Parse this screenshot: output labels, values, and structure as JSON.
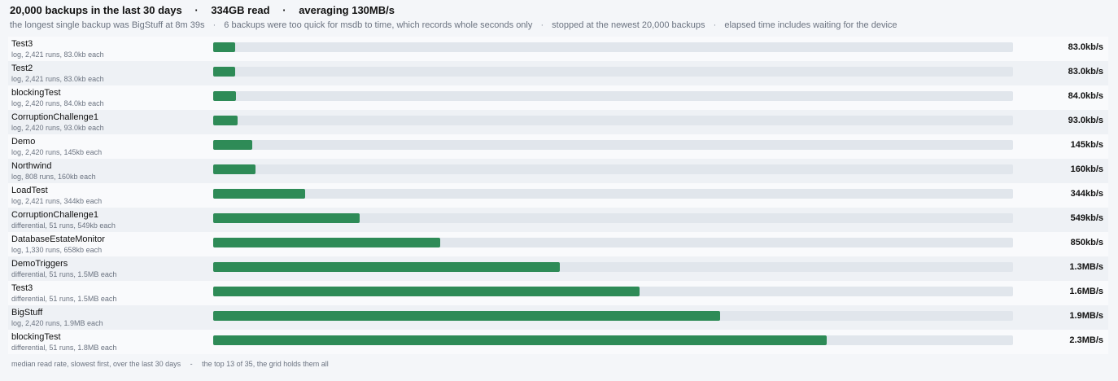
{
  "header": {
    "backups": "20,000 backups in the last 30 days",
    "read": "334GB read",
    "average": "averaging 130MB/s",
    "sep": "·"
  },
  "subline": {
    "items": [
      "the longest single backup was BigStuff at 8m 39s",
      "6 backups were too quick for msdb to time, which records whole seconds only",
      "stopped at the newest 20,000 backups",
      "elapsed time includes waiting for the device"
    ],
    "sep": "·"
  },
  "footer": {
    "left": "median read rate, slowest first, over the last 30 days",
    "dash": "-",
    "right": "the top 13 of 35, the grid holds them all"
  },
  "colors": {
    "bar": "#2e8b57",
    "track": "#e1e6ec"
  },
  "chart_data": {
    "type": "bar",
    "orientation": "horizontal",
    "unit": "kb/s",
    "max_value": 3000,
    "rows": [
      {
        "name": "Test3",
        "meta": "log, 2,421 runs, 83.0kb each",
        "value": 83,
        "label": "83.0kb/s"
      },
      {
        "name": "Test2",
        "meta": "log, 2,421 runs, 83.0kb each",
        "value": 83,
        "label": "83.0kb/s"
      },
      {
        "name": "blockingTest",
        "meta": "log, 2,420 runs, 84.0kb each",
        "value": 84,
        "label": "84.0kb/s"
      },
      {
        "name": "CorruptionChallenge1",
        "meta": "log, 2,420 runs, 93.0kb each",
        "value": 93,
        "label": "93.0kb/s"
      },
      {
        "name": "Demo",
        "meta": "log, 2,420 runs, 145kb each",
        "value": 145,
        "label": "145kb/s"
      },
      {
        "name": "Northwind",
        "meta": "log, 808 runs, 160kb each",
        "value": 160,
        "label": "160kb/s"
      },
      {
        "name": "LoadTest",
        "meta": "log, 2,421 runs, 344kb each",
        "value": 344,
        "label": "344kb/s"
      },
      {
        "name": "CorruptionChallenge1",
        "meta": "differential, 51 runs, 549kb each",
        "value": 549,
        "label": "549kb/s"
      },
      {
        "name": "DatabaseEstateMonitor",
        "meta": "log, 1,330 runs, 658kb each",
        "value": 850,
        "label": "850kb/s"
      },
      {
        "name": "DemoTriggers",
        "meta": "differential, 51 runs, 1.5MB each",
        "value": 1300,
        "label": "1.3MB/s"
      },
      {
        "name": "Test3",
        "meta": "differential, 51 runs, 1.5MB each",
        "value": 1600,
        "label": "1.6MB/s"
      },
      {
        "name": "BigStuff",
        "meta": "log, 2,420 runs, 1.9MB each",
        "value": 1900,
        "label": "1.9MB/s"
      },
      {
        "name": "blockingTest",
        "meta": "differential, 51 runs, 1.8MB each",
        "value": 2300,
        "label": "2.3MB/s"
      }
    ]
  }
}
